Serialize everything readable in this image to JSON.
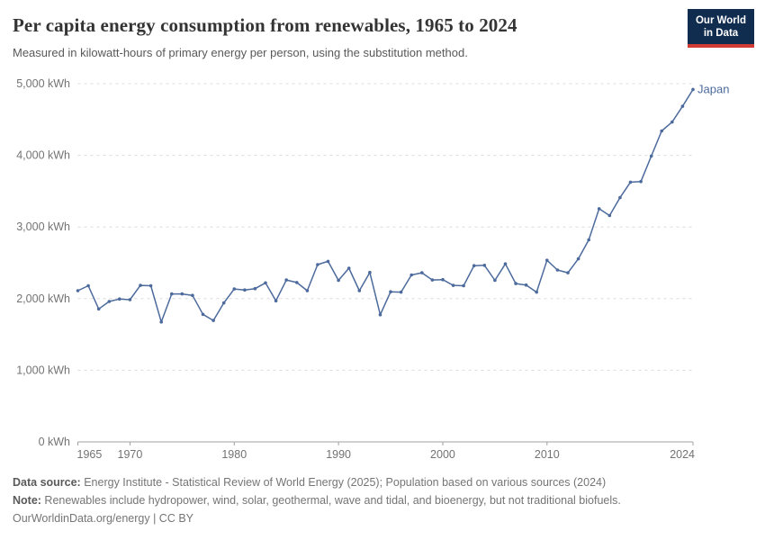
{
  "header": {
    "title": "Per capita energy consumption from renewables, 1965 to 2024",
    "subtitle": "Measured in kilowatt-hours of primary energy per person, using the substitution method.",
    "logo": {
      "line1": "Our World",
      "line2": "in Data",
      "bg_color": "#102d50",
      "stripe_color": "#d13b33"
    }
  },
  "chart_data": {
    "type": "line",
    "title": "Per capita energy consumption from renewables, 1965 to 2024",
    "entity_label": "Japan",
    "line_color": "#4C6A9C",
    "grid": "horizontal-dashed",
    "legend_position": "end-of-line-label",
    "unit": "kWh",
    "xlim": [
      1965,
      2024
    ],
    "ylim": [
      0,
      5000
    ],
    "x_ticks": [
      1965,
      1970,
      1980,
      1990,
      2000,
      2010,
      2024
    ],
    "y_ticks": [
      0,
      1000,
      2000,
      3000,
      4000,
      5000
    ],
    "y_tick_labels": [
      "0 kWh",
      "1,000 kWh",
      "2,000 kWh",
      "3,000 kWh",
      "4,000 kWh",
      "5,000 kWh"
    ],
    "series": [
      {
        "name": "Japan",
        "x": [
          1965,
          1966,
          1967,
          1968,
          1969,
          1970,
          1971,
          1972,
          1973,
          1974,
          1975,
          1976,
          1977,
          1978,
          1979,
          1980,
          1981,
          1982,
          1983,
          1984,
          1985,
          1986,
          1987,
          1988,
          1989,
          1990,
          1991,
          1992,
          1993,
          1994,
          1995,
          1996,
          1997,
          1998,
          1999,
          2000,
          2001,
          2002,
          2003,
          2004,
          2005,
          2006,
          2007,
          2008,
          2009,
          2010,
          2011,
          2012,
          2013,
          2014,
          2015,
          2016,
          2017,
          2018,
          2019,
          2020,
          2021,
          2022,
          2023,
          2024
        ],
        "values": [
          2110,
          2180,
          1855,
          1960,
          1995,
          1985,
          2185,
          2180,
          1675,
          2065,
          2065,
          2045,
          1780,
          1695,
          1940,
          2135,
          2120,
          2140,
          2220,
          1970,
          2260,
          2225,
          2110,
          2475,
          2520,
          2255,
          2425,
          2110,
          2365,
          1775,
          2095,
          2090,
          2330,
          2360,
          2260,
          2265,
          2185,
          2180,
          2460,
          2465,
          2255,
          2485,
          2210,
          2190,
          2090,
          2535,
          2400,
          2360,
          2555,
          2820,
          3255,
          3160,
          3410,
          3625,
          3635,
          3990,
          4340,
          4465,
          4685,
          4920
        ]
      }
    ]
  },
  "footer": {
    "data_source_label": "Data source:",
    "data_source_text": " Energy Institute - Statistical Review of World Energy (2025); Population based on various sources (2024)",
    "note_label": "Note:",
    "note_text": " Renewables include hydropower, wind, solar, geothermal, wave and tidal, and bioenergy, but not traditional biofuels.",
    "link_text": "OurWorldinData.org/energy | CC BY"
  }
}
